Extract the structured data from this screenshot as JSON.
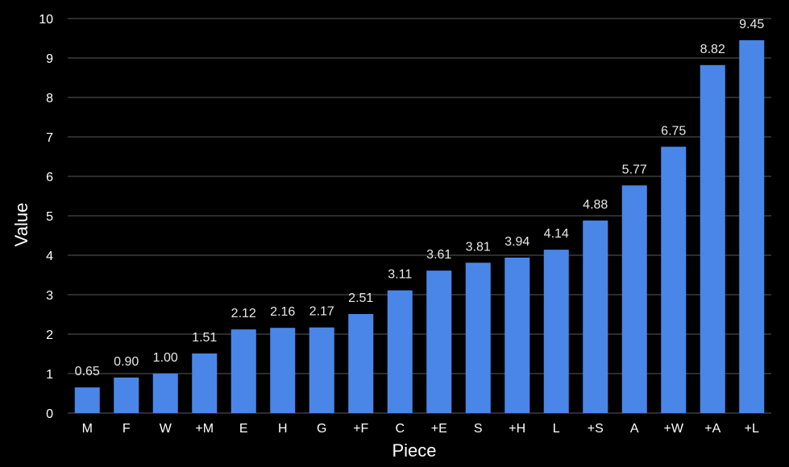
{
  "chart_data": {
    "type": "bar",
    "categories": [
      "M",
      "F",
      "W",
      "+M",
      "E",
      "H",
      "G",
      "+F",
      "C",
      "+E",
      "S",
      "+H",
      "L",
      "+S",
      "A",
      "+W",
      "+A",
      "+L"
    ],
    "values": [
      0.65,
      0.9,
      1.0,
      1.51,
      2.12,
      2.16,
      2.17,
      2.51,
      3.11,
      3.61,
      3.81,
      3.94,
      4.14,
      4.88,
      5.77,
      6.75,
      8.82,
      9.45
    ],
    "data_labels": [
      "0.65",
      "0.90",
      "1.00",
      "1.51",
      "2.12",
      "2.16",
      "2.17",
      "2.51",
      "3.11",
      "3.61",
      "3.81",
      "3.94",
      "4.14",
      "4.88",
      "5.77",
      "6.75",
      "8.82",
      "9.45"
    ],
    "xlabel": "Piece",
    "ylabel": "Value",
    "ylim": [
      0,
      10
    ],
    "yticks": [
      "0",
      "1",
      "2",
      "3",
      "4",
      "5",
      "6",
      "7",
      "8",
      "9",
      "10"
    ],
    "grid": true,
    "colors": {
      "bar": "#4a86e8",
      "background": "#000000",
      "grid": "#5a5a5a",
      "text": "#ffffff"
    }
  }
}
